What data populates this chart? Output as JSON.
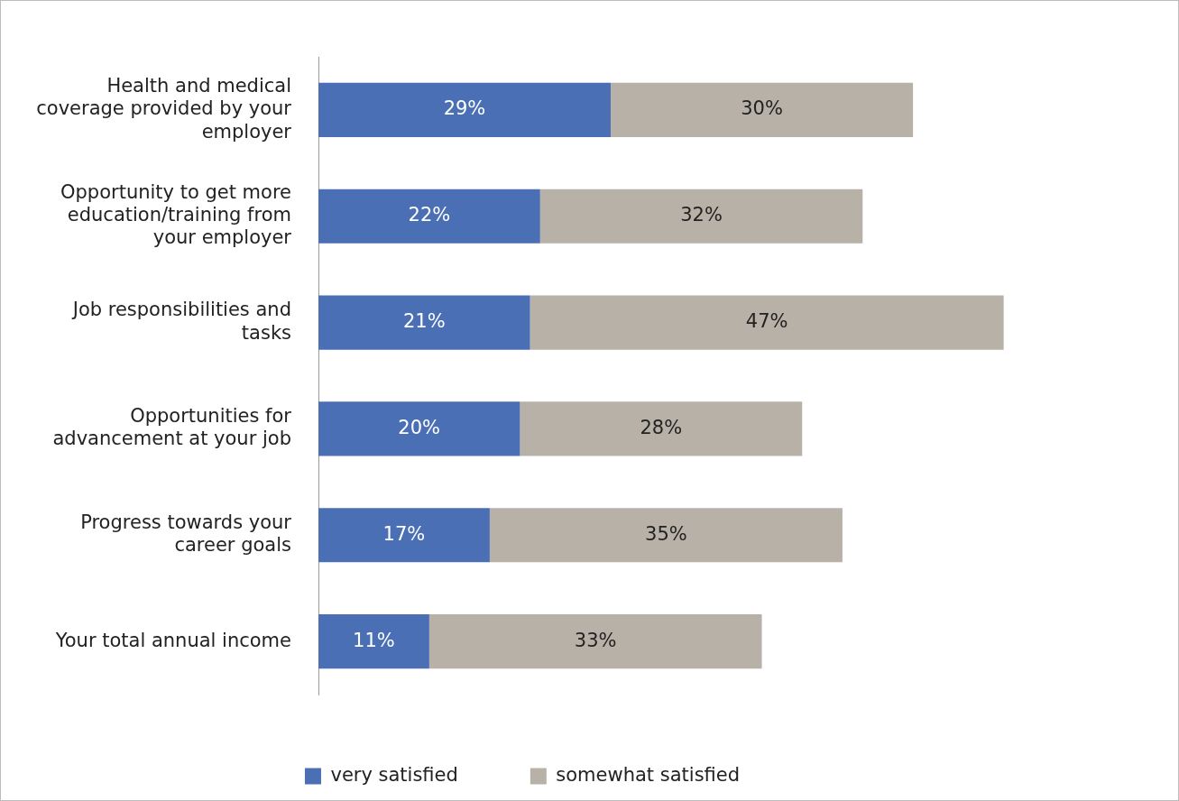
{
  "chart_data": {
    "type": "bar",
    "orientation": "horizontal",
    "stacked": true,
    "categories": [
      "Health and medical coverage provided by your employer",
      "Opportunity to get more education/training from your employer",
      "Job responsibilities and tasks",
      "Opportunities for advancement at your job",
      "Progress towards your career goals",
      "Your total annual income"
    ],
    "series": [
      {
        "name": "very satisfied",
        "color": "#4a6fb5",
        "values": [
          29,
          22,
          21,
          20,
          17,
          11
        ],
        "value_labels": [
          "29%",
          "22%",
          "21%",
          "20%",
          "17%",
          "11%"
        ]
      },
      {
        "name": "somewhat satisfied",
        "color": "#b8b1a8",
        "values": [
          30,
          32,
          47,
          28,
          35,
          33
        ],
        "value_labels": [
          "30%",
          "32%",
          "47%",
          "28%",
          "35%",
          "33%"
        ]
      }
    ],
    "tick_labels": "y",
    "legend": "bottom"
  }
}
